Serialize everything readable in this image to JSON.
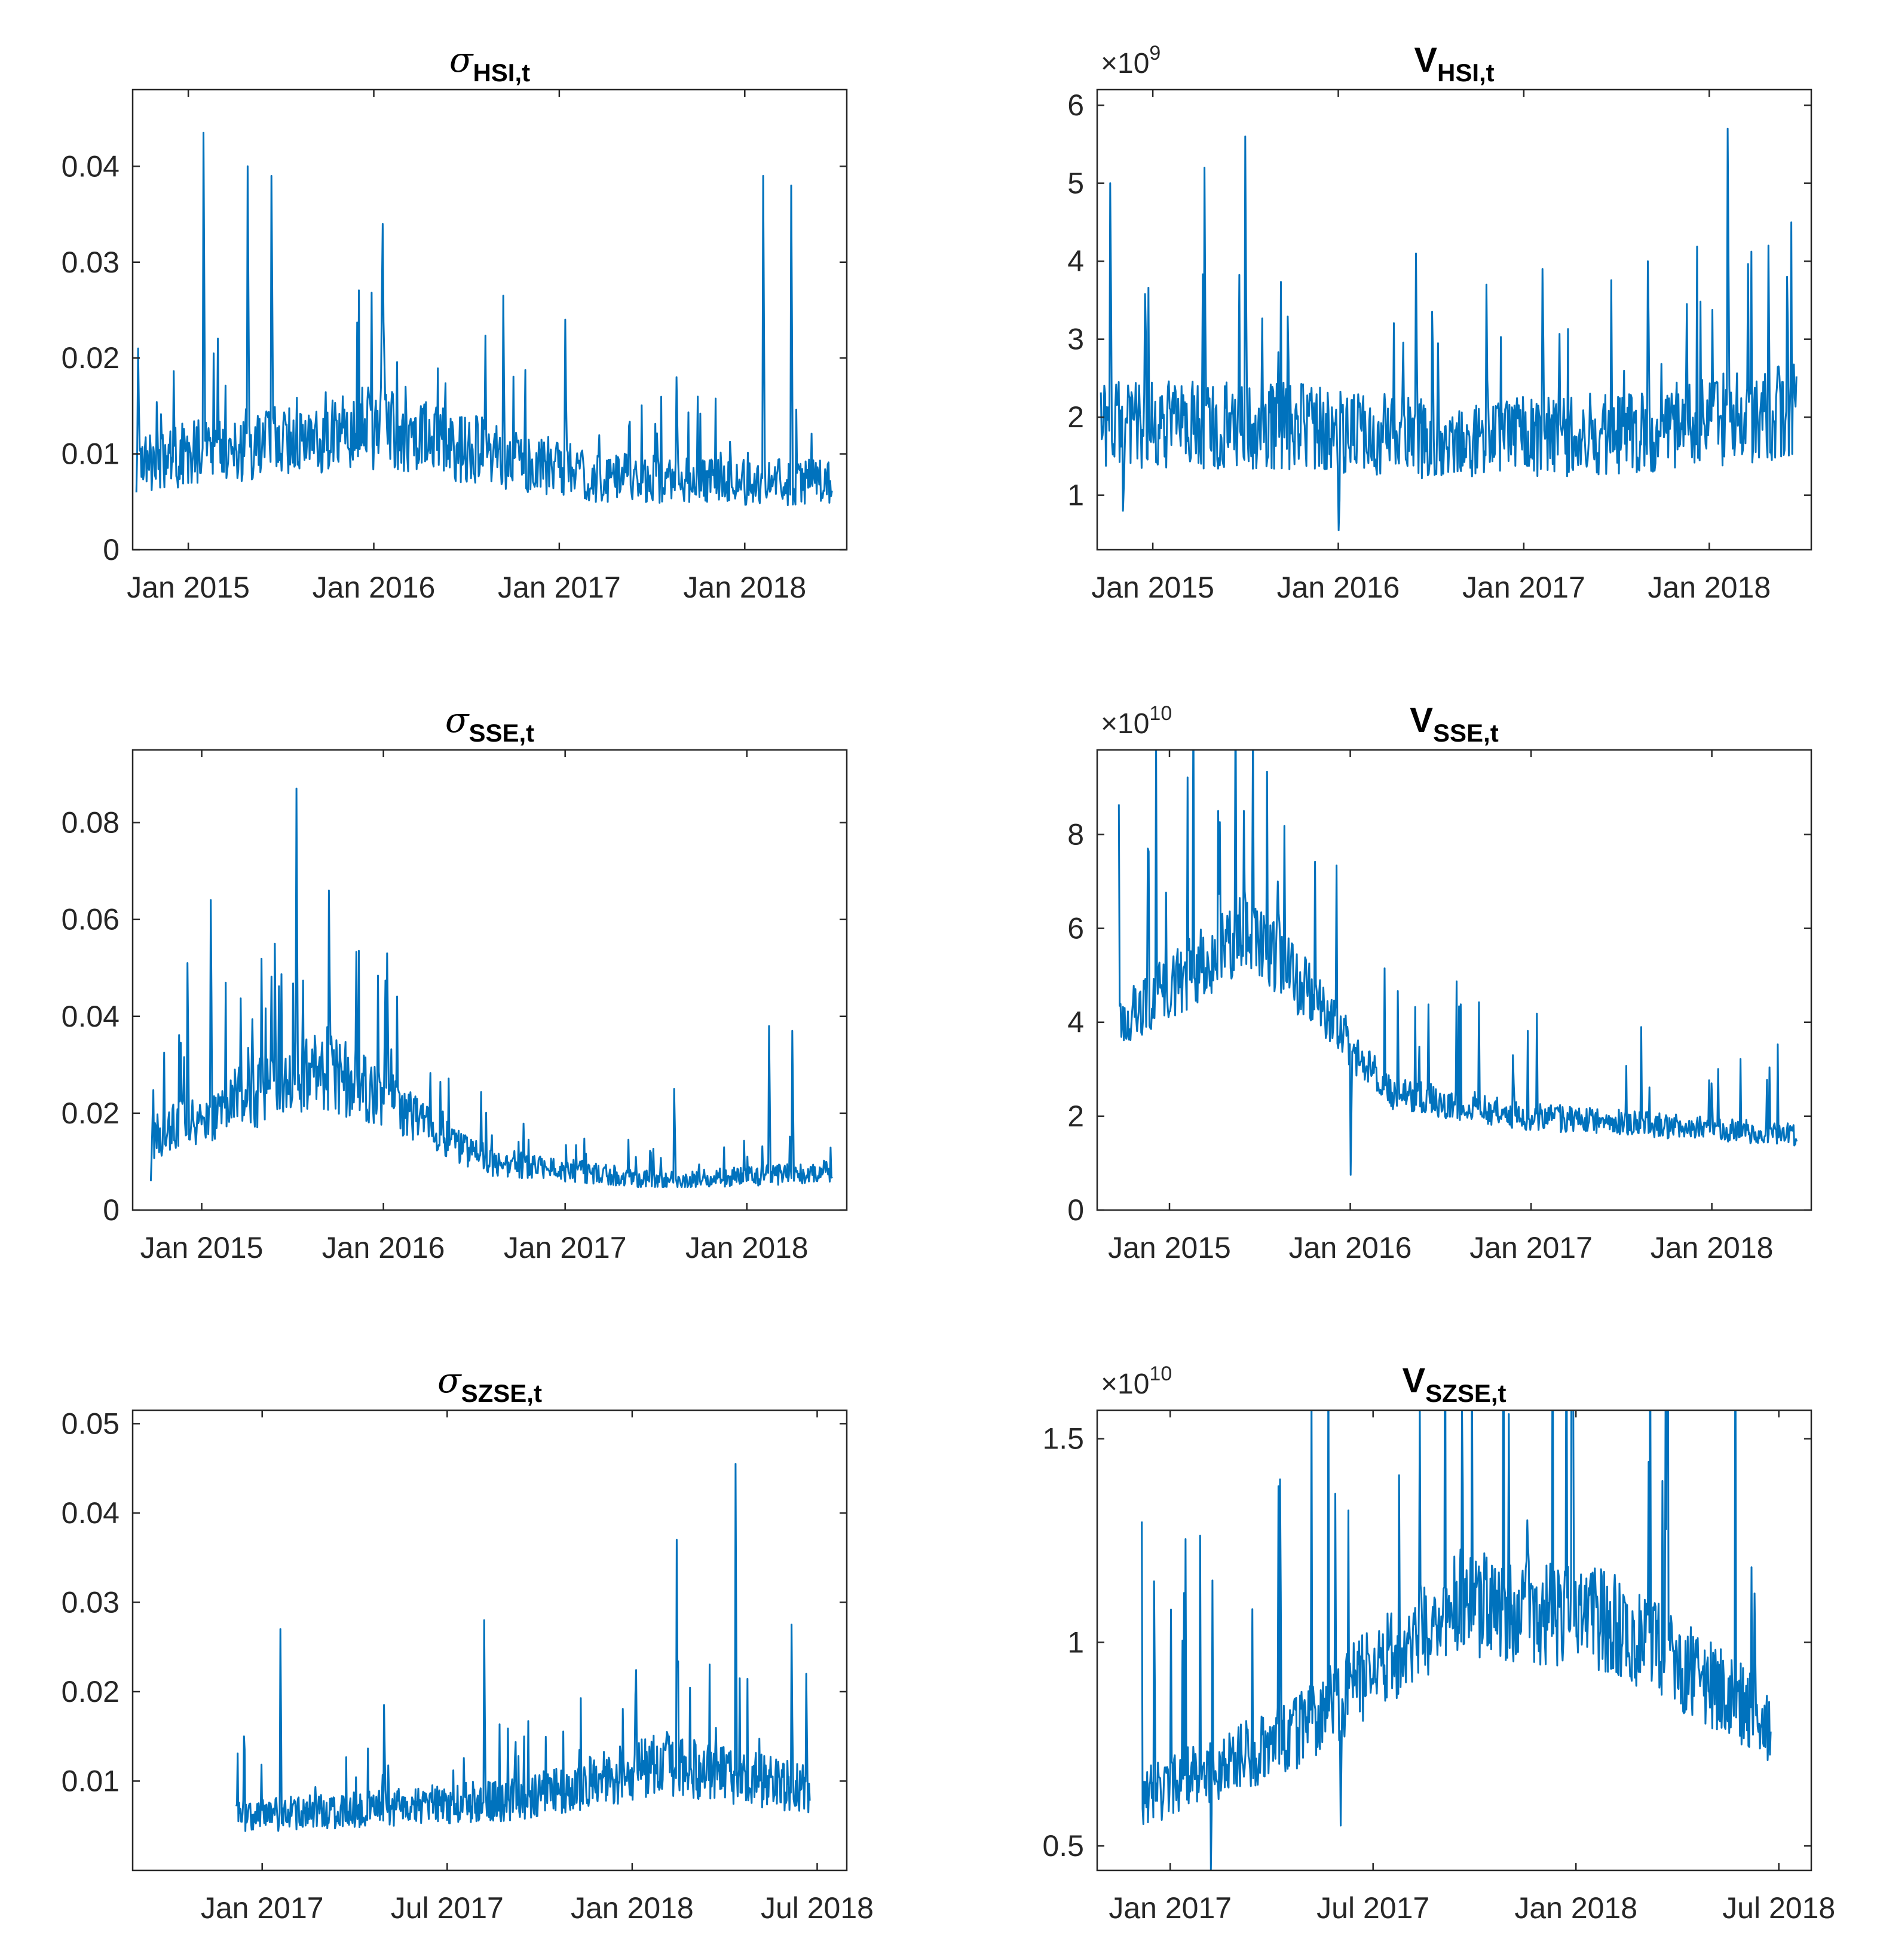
{
  "colors": {
    "series": "#0072BD",
    "axis": "#262626"
  },
  "chart_data": [
    {
      "id": "sigma_hsi",
      "type": "line",
      "title": {
        "symbol": "σ",
        "sub": "HSI,t"
      },
      "multiplier": null,
      "ylim": [
        0,
        0.048
      ],
      "yticks": [
        0,
        0.01,
        0.02,
        0.03,
        0.04
      ],
      "yticklabels": [
        "0",
        "0.01",
        "0.02",
        "0.03",
        "0.04"
      ],
      "xlim": [
        -0.3,
        3.55
      ],
      "xticks": [
        0,
        1,
        2,
        3
      ],
      "xticklabels": [
        "Jan 2015",
        "Jan 2016",
        "Jan 2017",
        "Jan 2018"
      ],
      "x_units": "years since Jan 2015",
      "base": [
        0.009,
        0.013,
        0.0075,
        0.007
      ],
      "noise": 0.35,
      "series": [
        {
          "name": "σ HSI,t",
          "x": [
            -0.28,
            3.47
          ]
        }
      ],
      "peaks": [
        [
          -0.27,
          0.021
        ],
        [
          0.08,
          0.0435
        ],
        [
          0.32,
          0.04
        ],
        [
          0.45,
          0.039
        ],
        [
          1.05,
          0.034
        ],
        [
          1.7,
          0.0265
        ],
        [
          2.03,
          0.024
        ],
        [
          2.63,
          0.018
        ],
        [
          3.1,
          0.039
        ],
        [
          3.25,
          0.038
        ]
      ]
    },
    {
      "id": "v_hsi",
      "type": "line",
      "title": {
        "symbol": "V",
        "sub": "HSI,t"
      },
      "multiplier": {
        "base": "×10",
        "exp": "9"
      },
      "ylim": [
        0.3,
        6.2
      ],
      "yticks": [
        1,
        2,
        3,
        4,
        5,
        6
      ],
      "yticklabels": [
        "1",
        "2",
        "3",
        "4",
        "5",
        "6"
      ],
      "xlim": [
        -0.3,
        3.55
      ],
      "xticks": [
        0,
        1,
        2,
        3
      ],
      "xticklabels": [
        "Jan 2015",
        "Jan 2016",
        "Jan 2017",
        "Jan 2018"
      ],
      "x_units": "years since Jan 2015",
      "base": [
        1.9,
        1.9,
        1.7,
        1.8,
        2.1
      ],
      "noise": 0.3,
      "series": [
        {
          "name": "V HSI,t",
          "x": [
            -0.28,
            3.47
          ]
        }
      ],
      "peaks": [
        [
          -0.23,
          5.0
        ],
        [
          -0.16,
          0.8
        ],
        [
          0.28,
          5.2
        ],
        [
          0.5,
          5.6
        ],
        [
          1.0,
          0.55
        ],
        [
          1.42,
          4.1
        ],
        [
          1.8,
          3.7
        ],
        [
          2.1,
          3.9
        ],
        [
          2.67,
          4.0
        ],
        [
          3.1,
          5.7
        ],
        [
          3.32,
          4.2
        ],
        [
          3.42,
          3.8
        ]
      ]
    },
    {
      "id": "sigma_sse",
      "type": "line",
      "title": {
        "symbol": "σ",
        "sub": "SSE,t"
      },
      "multiplier": null,
      "ylim": [
        0,
        0.095
      ],
      "yticks": [
        0,
        0.02,
        0.04,
        0.06,
        0.08
      ],
      "yticklabels": [
        "0",
        "0.02",
        "0.04",
        "0.06",
        "0.08"
      ],
      "xlim": [
        -0.38,
        3.55
      ],
      "xticks": [
        0,
        1,
        2,
        3
      ],
      "xticklabels": [
        "Jan 2015",
        "Jan 2016",
        "Jan 2017",
        "Jan 2018"
      ],
      "x_units": "years since Jan 2015",
      "base": [
        0.015,
        0.03,
        0.01,
        0.006,
        0.008
      ],
      "noise": 0.3,
      "series": [
        {
          "name": "σ SSE,t",
          "x": [
            -0.28,
            3.47
          ]
        }
      ],
      "peaks": [
        [
          -0.28,
          0.006
        ],
        [
          -0.08,
          0.051
        ],
        [
          0.05,
          0.064
        ],
        [
          0.4,
          0.055
        ],
        [
          0.52,
          0.087
        ],
        [
          0.7,
          0.066
        ],
        [
          1.02,
          0.053
        ],
        [
          2.6,
          0.025
        ],
        [
          3.12,
          0.038
        ],
        [
          3.25,
          0.037
        ]
      ]
    },
    {
      "id": "v_sse",
      "type": "line",
      "title": {
        "symbol": "V",
        "sub": "SSE,t"
      },
      "multiplier": {
        "base": "×10",
        "exp": "10"
      },
      "ylim": [
        0,
        9.8
      ],
      "yticks": [
        0,
        2,
        4,
        6,
        8
      ],
      "yticklabels": [
        "0",
        "2",
        "4",
        "6",
        "8"
      ],
      "xlim": [
        -0.4,
        3.55
      ],
      "xticks": [
        0,
        1,
        2,
        3
      ],
      "xticklabels": [
        "Jan 2015",
        "Jan 2016",
        "Jan 2017",
        "Jan 2018"
      ],
      "x_units": "years since Jan 2015",
      "base": [
        4.0,
        6.0,
        2.5,
        2.0,
        1.8,
        1.6
      ],
      "noise": 0.15,
      "series": [
        {
          "name": "V SSE,t",
          "x": [
            -0.28,
            3.47
          ]
        }
      ],
      "peaks": [
        [
          -0.12,
          7.7
        ],
        [
          0.27,
          8.5
        ],
        [
          0.41,
          8.5
        ],
        [
          0.6,
          7.0
        ],
        [
          1.0,
          0.75
        ],
        [
          1.9,
          3.3
        ],
        [
          3.0,
          2.7
        ]
      ]
    },
    {
      "id": "sigma_szse",
      "type": "line",
      "title": {
        "symbol": "σ",
        "sub": "SZSE,t"
      },
      "multiplier": null,
      "ylim": [
        0,
        0.0515
      ],
      "yticks": [
        0.01,
        0.02,
        0.03,
        0.04,
        0.05
      ],
      "yticklabels": [
        "0.01",
        "0.02",
        "0.03",
        "0.04",
        "0.05"
      ],
      "xlim": [
        -0.35,
        1.58
      ],
      "xticks": [
        0,
        0.5,
        1,
        1.5
      ],
      "xticklabels": [
        "Jan 2017",
        "Jul 2017",
        "Jan 2018",
        "Jul 2018"
      ],
      "x_units": "years since Jan 2017",
      "base": [
        0.006,
        0.007,
        0.008,
        0.012,
        0.009
      ],
      "noise": 0.3,
      "series": [
        {
          "name": "σ SZSE,t",
          "x": [
            -0.07,
            1.48
          ]
        }
      ],
      "peaks": [
        [
          -0.05,
          0.015
        ],
        [
          0.05,
          0.027
        ],
        [
          0.33,
          0.0185
        ],
        [
          0.6,
          0.028
        ],
        [
          1.12,
          0.037
        ],
        [
          1.28,
          0.0455
        ],
        [
          1.43,
          0.0275
        ],
        [
          1.47,
          0.022
        ]
      ]
    },
    {
      "id": "v_szse",
      "type": "line",
      "title": {
        "symbol": "V",
        "sub": "SZSE,t"
      },
      "multiplier": {
        "base": "×10",
        "exp": "10"
      },
      "ylim": [
        0.44,
        1.57
      ],
      "yticks": [
        0.5,
        1,
        1.5
      ],
      "yticklabels": [
        "0.5",
        "1",
        "1.5"
      ],
      "xlim": [
        -0.18,
        1.58
      ],
      "xticks": [
        0,
        0.5,
        1,
        1.5
      ],
      "xticklabels": [
        "Jan 2017",
        "Jul 2017",
        "Jan 2018",
        "Jul 2018"
      ],
      "x_units": "years since Jan 2017",
      "base": [
        0.62,
        0.78,
        1.1,
        1.05,
        0.8
      ],
      "noise": 0.12,
      "series": [
        {
          "name": "V SZSE,t",
          "x": [
            -0.07,
            1.48
          ]
        }
      ],
      "peaks": [
        [
          -0.04,
          1.15
        ],
        [
          0.1,
          0.44
        ],
        [
          0.27,
          1.4
        ],
        [
          0.42,
          0.55
        ],
        [
          0.72,
          1.57
        ],
        [
          0.88,
          1.3
        ],
        [
          1.22,
          1.57
        ],
        [
          1.44,
          1.12
        ]
      ]
    }
  ]
}
